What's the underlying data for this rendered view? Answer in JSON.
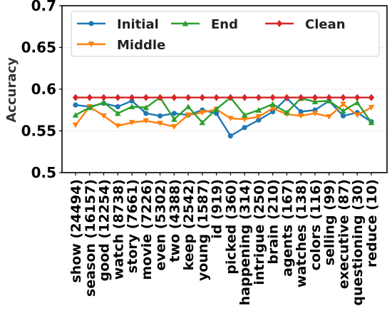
{
  "chart_data": {
    "type": "line",
    "ylabel": "Accuracy",
    "xlabel": "",
    "ylim": [
      0.5,
      0.7
    ],
    "yticks": [
      "0.5",
      "0.55",
      "0.6",
      "0.65",
      "0.7"
    ],
    "grid": true,
    "legend_position": "top",
    "categories": [
      "show (24494)",
      "season (16157)",
      "good (12254)",
      "watch (8738)",
      "story (7661)",
      "movie (7226)",
      "even (5302)",
      "two (4388)",
      "keep (2542)",
      "young (1587)",
      "id (919)",
      "picked (360)",
      "happening (314)",
      "intrigue (250)",
      "brain (210)",
      "agents (167)",
      "watches (138)",
      "colors (116)",
      "selling (99)",
      "executive (87)",
      "questioning (30)",
      "reduce (10)"
    ],
    "series": [
      {
        "name": "Initial",
        "color": "#1f77b4",
        "marker": "circle",
        "values": [
          0.581,
          0.579,
          0.583,
          0.579,
          0.586,
          0.571,
          0.568,
          0.571,
          0.569,
          0.575,
          0.571,
          0.544,
          0.554,
          0.563,
          0.573,
          0.589,
          0.573,
          0.575,
          0.586,
          0.568,
          0.572,
          0.561
        ]
      },
      {
        "name": "Middle",
        "color": "#ff7f0e",
        "marker": "triangle-down",
        "values": [
          0.557,
          0.579,
          0.568,
          0.556,
          0.56,
          0.562,
          0.559,
          0.555,
          0.569,
          0.572,
          0.576,
          0.565,
          0.564,
          0.567,
          0.577,
          0.57,
          0.568,
          0.571,
          0.567,
          0.582,
          0.569,
          0.578
        ]
      },
      {
        "name": "End",
        "color": "#2ca02c",
        "marker": "triangle-up",
        "values": [
          0.569,
          0.578,
          0.584,
          0.571,
          0.579,
          0.578,
          0.59,
          0.564,
          0.579,
          0.56,
          0.576,
          0.59,
          0.569,
          0.575,
          0.582,
          0.572,
          0.589,
          0.585,
          0.586,
          0.574,
          0.584,
          0.56
        ]
      },
      {
        "name": "Clean",
        "color": "#d62728",
        "marker": "diamond",
        "values": [
          0.59,
          0.59,
          0.59,
          0.59,
          0.59,
          0.59,
          0.59,
          0.59,
          0.59,
          0.59,
          0.59,
          0.59,
          0.59,
          0.59,
          0.59,
          0.59,
          0.59,
          0.59,
          0.59,
          0.59,
          0.59,
          0.59
        ]
      }
    ]
  }
}
